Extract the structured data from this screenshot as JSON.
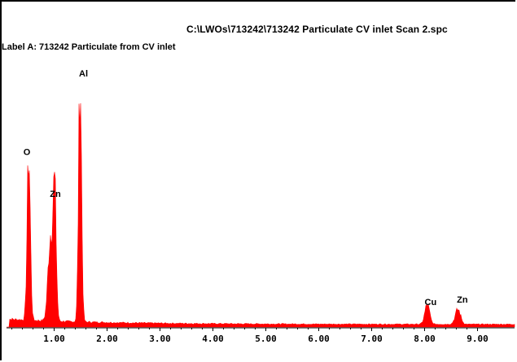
{
  "header": {
    "file_path": "C:\\LWOs\\713242\\713242 Particulate CV inlet Scan 2.spc",
    "label": "Label A: 713242 Particulate from CV inlet"
  },
  "colors": {
    "spectrum": "#ff0000",
    "axis": "#000000",
    "background": "#ffffff"
  },
  "chart_data": {
    "type": "area",
    "title": "",
    "xlabel": "",
    "ylabel": "",
    "xlim": [
      0.1,
      9.7
    ],
    "ylim": [
      0,
      100
    ],
    "grid": false,
    "x_ticks": [
      1.0,
      2.0,
      3.0,
      4.0,
      5.0,
      6.0,
      7.0,
      8.0,
      9.0
    ],
    "x_tick_labels": [
      "1.00",
      "2.00",
      "3.00",
      "4.00",
      "5.00",
      "6.00",
      "7.00",
      "8.00",
      "9.00"
    ],
    "peaks": [
      {
        "element": "O",
        "x": 0.52,
        "y": 67,
        "width": 0.03
      },
      {
        "element": "Zn",
        "x": 0.93,
        "y": 34,
        "width": 0.045
      },
      {
        "element": "Zn",
        "x": 1.01,
        "y": 50,
        "width": 0.03
      },
      {
        "element": "Al",
        "x": 1.49,
        "y": 100,
        "width": 0.028
      },
      {
        "element": "Cu",
        "x": 8.05,
        "y": 8,
        "width": 0.045
      },
      {
        "element": "Zn",
        "x": 8.63,
        "y": 6,
        "width": 0.05
      }
    ],
    "peak_labels": [
      {
        "text": "O",
        "x": 0.42,
        "y": 70
      },
      {
        "text": "Zn",
        "x": 0.92,
        "y": 53
      },
      {
        "text": "Al",
        "x": 1.47,
        "y": 102
      },
      {
        "text": "Cu",
        "x": 8.0,
        "y": 9
      },
      {
        "text": "Zn",
        "x": 8.61,
        "y": 10
      }
    ]
  }
}
